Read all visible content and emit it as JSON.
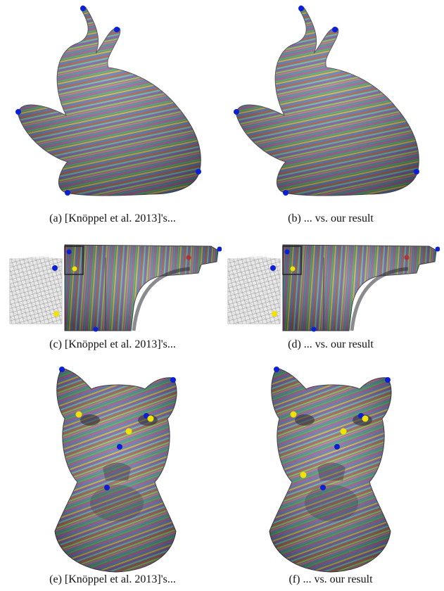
{
  "figure": {
    "captions": {
      "a": "(a) [Knöppel et al. 2013]'s...",
      "b": "(b) ... vs. our result",
      "c": "(c) [Knöppel et al. 2013]'s...",
      "d": "(d) ... vs. our result",
      "e": "(e) [Knöppel et al. 2013]'s...",
      "f": "(f) ... vs. our result"
    },
    "colors": {
      "singularity_blue": "#0a1fd6",
      "singularity_yellow": "#f2e200",
      "stroke_palette": [
        "#b04a9a",
        "#3fae5c",
        "#c9b13c",
        "#4b73c8",
        "#b5503a",
        "#5fb6b0",
        "#7a4fb2",
        "#8fbf4a",
        "#c56a8c",
        "#3d8f9e"
      ]
    }
  }
}
